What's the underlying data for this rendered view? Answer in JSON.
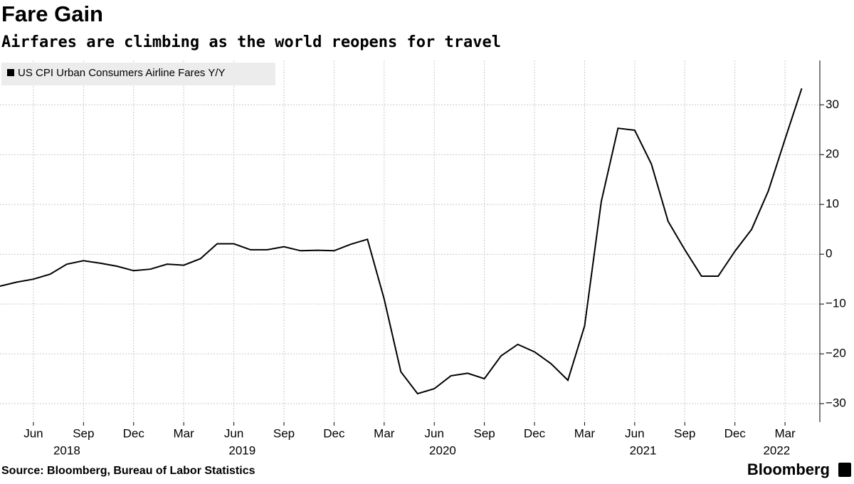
{
  "chart_data": {
    "type": "line",
    "title": "Fare Gain",
    "subtitle": "Airfares are climbing as the world reopens for travel",
    "source": "Source: Bloomberg, Bureau of Labor Statistics",
    "brand": "Bloomberg",
    "x": [
      "2018-04",
      "2018-05",
      "2018-06",
      "2018-07",
      "2018-08",
      "2018-09",
      "2018-10",
      "2018-11",
      "2018-12",
      "2019-01",
      "2019-02",
      "2019-03",
      "2019-04",
      "2019-05",
      "2019-06",
      "2019-07",
      "2019-08",
      "2019-09",
      "2019-10",
      "2019-11",
      "2019-12",
      "2020-01",
      "2020-02",
      "2020-03",
      "2020-04",
      "2020-05",
      "2020-06",
      "2020-07",
      "2020-08",
      "2020-09",
      "2020-10",
      "2020-11",
      "2020-12",
      "2021-01",
      "2021-02",
      "2021-03",
      "2021-04",
      "2021-05",
      "2021-06",
      "2021-07",
      "2021-08",
      "2021-09",
      "2021-10",
      "2021-11",
      "2021-12",
      "2022-01",
      "2022-02",
      "2022-03",
      "2022-04"
    ],
    "series": [
      {
        "name": "US CPI Urban Consumers Airline Fares Y/Y",
        "color": "#000000",
        "values": [
          -6.4,
          -5.6,
          -5.0,
          -4.0,
          -2.0,
          -1.3,
          -1.8,
          -2.4,
          -3.3,
          -3.0,
          -2.0,
          -2.2,
          -0.9,
          2.1,
          2.1,
          0.9,
          0.9,
          1.5,
          0.7,
          0.8,
          0.7,
          2.0,
          3.0,
          -9.0,
          -23.6,
          -28.0,
          -27.0,
          -24.4,
          -23.9,
          -25.0,
          -20.4,
          -18.1,
          -19.6,
          -22.0,
          -25.3,
          -14.4,
          10.6,
          25.3,
          24.9,
          18.1,
          6.6,
          0.9,
          -4.4,
          -4.4,
          0.6,
          5.0,
          12.7,
          23.1,
          33.3
        ]
      }
    ],
    "xticks": [
      {
        "value": "2018-06",
        "label": "Jun"
      },
      {
        "value": "2018-09",
        "label": "Sep"
      },
      {
        "value": "2018-12",
        "label": "Dec"
      },
      {
        "value": "2019-03",
        "label": "Mar"
      },
      {
        "value": "2019-06",
        "label": "Jun"
      },
      {
        "value": "2019-09",
        "label": "Sep"
      },
      {
        "value": "2019-12",
        "label": "Dec"
      },
      {
        "value": "2020-03",
        "label": "Mar"
      },
      {
        "value": "2020-06",
        "label": "Jun"
      },
      {
        "value": "2020-09",
        "label": "Sep"
      },
      {
        "value": "2020-12",
        "label": "Dec"
      },
      {
        "value": "2021-03",
        "label": "Mar"
      },
      {
        "value": "2021-06",
        "label": "Jun"
      },
      {
        "value": "2021-09",
        "label": "Sep"
      },
      {
        "value": "2021-12",
        "label": "Dec"
      },
      {
        "value": "2022-03",
        "label": "Mar"
      }
    ],
    "years": [
      "2018",
      "2019",
      "2020",
      "2021",
      "2022"
    ],
    "ylim": [
      -33.7,
      38.9
    ],
    "yticks": [
      {
        "value": -30,
        "label": "−30"
      },
      {
        "value": -20,
        "label": "−20"
      },
      {
        "value": -10,
        "label": "−10"
      },
      0,
      10,
      20,
      30
    ],
    "grid": true
  }
}
